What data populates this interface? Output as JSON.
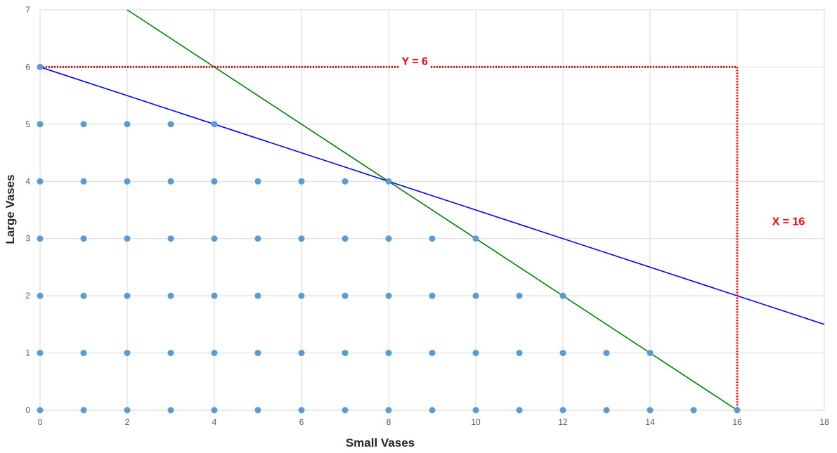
{
  "chart_data": {
    "type": "scatter",
    "title": "",
    "xlabel": "Small Vases",
    "ylabel": "Large Vases",
    "xlim": [
      0,
      18
    ],
    "ylim": [
      0,
      7
    ],
    "x_ticks": [
      0,
      2,
      4,
      6,
      8,
      10,
      12,
      14,
      16,
      18
    ],
    "y_ticks": [
      0,
      1,
      2,
      3,
      4,
      5,
      6,
      7
    ],
    "grid": true,
    "legend": "none",
    "series": [
      {
        "type": "scatter",
        "color": "#5b9bd5",
        "points": [
          [
            0,
            0
          ],
          [
            1,
            0
          ],
          [
            2,
            0
          ],
          [
            3,
            0
          ],
          [
            4,
            0
          ],
          [
            5,
            0
          ],
          [
            6,
            0
          ],
          [
            7,
            0
          ],
          [
            8,
            0
          ],
          [
            9,
            0
          ],
          [
            10,
            0
          ],
          [
            11,
            0
          ],
          [
            12,
            0
          ],
          [
            13,
            0
          ],
          [
            14,
            0
          ],
          [
            15,
            0
          ],
          [
            16,
            0
          ],
          [
            0,
            1
          ],
          [
            1,
            1
          ],
          [
            2,
            1
          ],
          [
            3,
            1
          ],
          [
            4,
            1
          ],
          [
            5,
            1
          ],
          [
            6,
            1
          ],
          [
            7,
            1
          ],
          [
            8,
            1
          ],
          [
            9,
            1
          ],
          [
            10,
            1
          ],
          [
            11,
            1
          ],
          [
            12,
            1
          ],
          [
            13,
            1
          ],
          [
            14,
            1
          ],
          [
            0,
            2
          ],
          [
            1,
            2
          ],
          [
            2,
            2
          ],
          [
            3,
            2
          ],
          [
            4,
            2
          ],
          [
            5,
            2
          ],
          [
            6,
            2
          ],
          [
            7,
            2
          ],
          [
            8,
            2
          ],
          [
            9,
            2
          ],
          [
            10,
            2
          ],
          [
            11,
            2
          ],
          [
            12,
            2
          ],
          [
            0,
            3
          ],
          [
            1,
            3
          ],
          [
            2,
            3
          ],
          [
            3,
            3
          ],
          [
            4,
            3
          ],
          [
            5,
            3
          ],
          [
            6,
            3
          ],
          [
            7,
            3
          ],
          [
            8,
            3
          ],
          [
            9,
            3
          ],
          [
            10,
            3
          ],
          [
            0,
            4
          ],
          [
            1,
            4
          ],
          [
            2,
            4
          ],
          [
            3,
            4
          ],
          [
            4,
            4
          ],
          [
            5,
            4
          ],
          [
            6,
            4
          ],
          [
            7,
            4
          ],
          [
            8,
            4
          ],
          [
            0,
            5
          ],
          [
            1,
            5
          ],
          [
            2,
            5
          ],
          [
            3,
            5
          ],
          [
            4,
            5
          ],
          [
            0,
            6
          ]
        ]
      },
      {
        "type": "line",
        "color": "#0000ff",
        "points": [
          [
            0,
            6
          ],
          [
            18,
            1.5
          ]
        ]
      },
      {
        "type": "line",
        "color": "#008000",
        "points": [
          [
            2,
            7
          ],
          [
            16,
            0
          ]
        ]
      },
      {
        "type": "dotted-line",
        "color": "#ff0000",
        "points": [
          [
            0,
            6
          ],
          [
            16,
            6
          ]
        ]
      },
      {
        "type": "dotted-line",
        "color": "#ff0000",
        "points": [
          [
            16,
            6
          ],
          [
            16,
            0
          ]
        ]
      }
    ],
    "annotations": [
      {
        "text": "Y = 6",
        "x": 8.6,
        "y": 6,
        "color": "#ff0000"
      },
      {
        "text": "X = 16",
        "x": 16.8,
        "y": 3.3,
        "color": "#ff0000"
      }
    ]
  }
}
